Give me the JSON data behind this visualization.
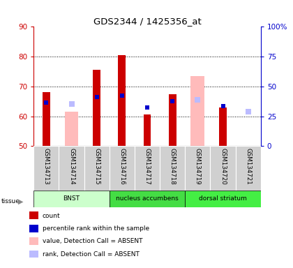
{
  "title": "GDS2344 / 1425356_at",
  "samples": [
    "GSM134713",
    "GSM134714",
    "GSM134715",
    "GSM134716",
    "GSM134717",
    "GSM134718",
    "GSM134719",
    "GSM134720",
    "GSM134721"
  ],
  "count_values": [
    68,
    null,
    75.5,
    80.5,
    60.5,
    67.5,
    null,
    63,
    50
  ],
  "count_absent_values": [
    null,
    61.5,
    null,
    null,
    null,
    null,
    73.5,
    null,
    null
  ],
  "rank_values": [
    64.5,
    null,
    66.5,
    67,
    63,
    65,
    null,
    63.5,
    null
  ],
  "rank_absent_values": [
    null,
    64,
    null,
    null,
    null,
    null,
    65.5,
    null,
    61.5
  ],
  "y_min": 50,
  "y_max": 90,
  "y_ticks": [
    50,
    60,
    70,
    80,
    90
  ],
  "y2_ticks": [
    0,
    25,
    50,
    75,
    100
  ],
  "tissues": [
    {
      "label": "BNST",
      "start": 0,
      "end": 3,
      "color": "#ccffcc"
    },
    {
      "label": "nucleus accumbens",
      "start": 3,
      "end": 6,
      "color": "#44dd44"
    },
    {
      "label": "dorsal striatum",
      "start": 6,
      "end": 9,
      "color": "#44ee44"
    }
  ],
  "bar_width": 0.3,
  "absent_bar_width": 0.55,
  "count_color": "#cc0000",
  "rank_color": "#0000cc",
  "count_absent_color": "#ffbbbb",
  "rank_absent_color": "#bbbbff",
  "left_axis_color": "#cc0000",
  "right_axis_color": "#0000cc"
}
